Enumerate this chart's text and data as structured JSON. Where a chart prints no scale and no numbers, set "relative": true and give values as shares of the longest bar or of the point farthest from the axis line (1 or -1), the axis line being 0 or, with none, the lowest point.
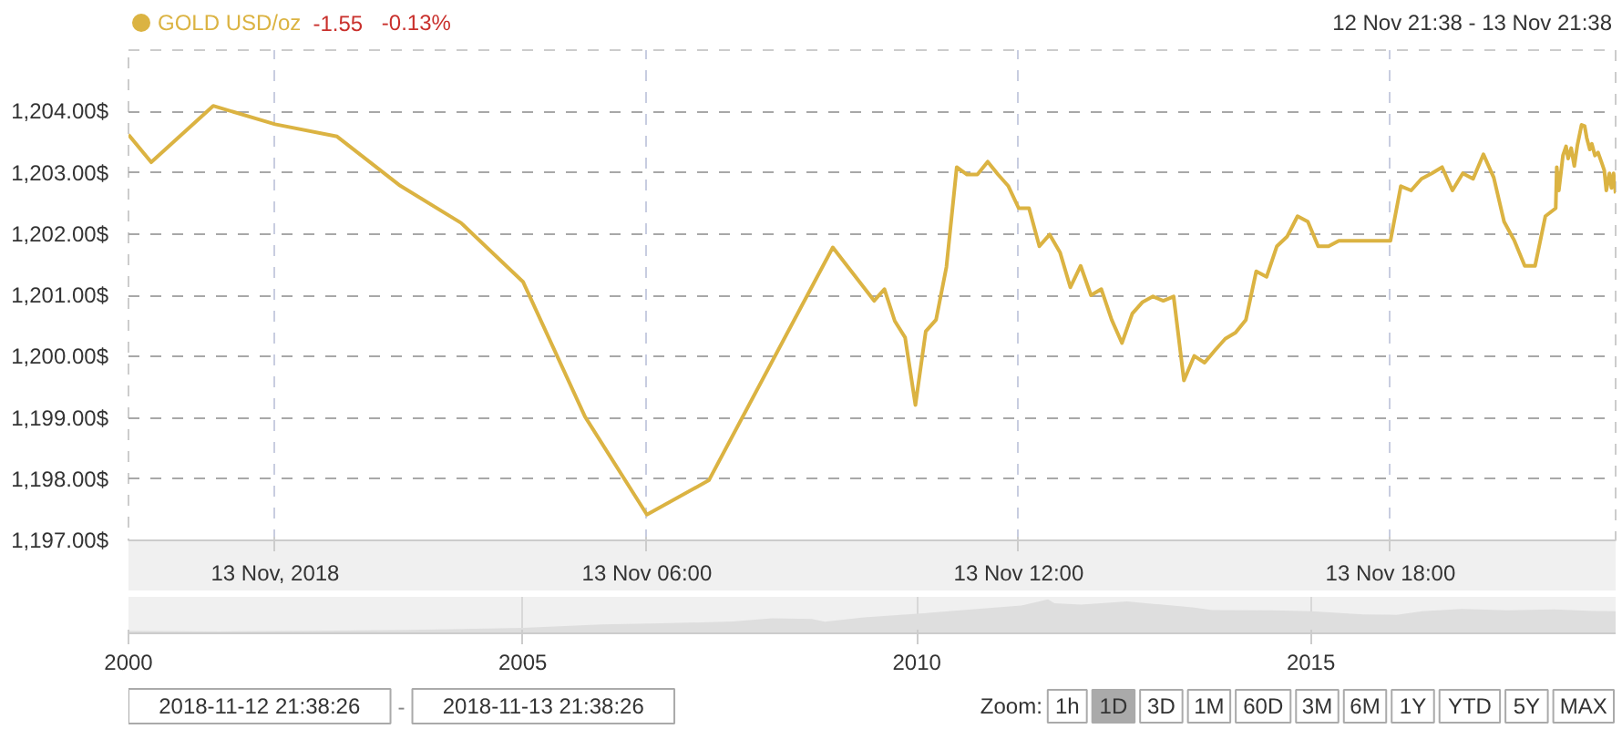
{
  "chart_data": [
    {
      "type": "line",
      "legend": "top left",
      "grid": true,
      "line_style": "solid",
      "subtitle": "12 Nov 21:38 - 13 Nov 21:38",
      "annotations": [
        "-1.55",
        "-0.13%"
      ],
      "x": [
        "2018-11-12T21:38",
        "2018-11-12T22:00",
        "2018-11-12T23:00",
        "2018-11-13T00:00",
        "2018-11-13T01:00",
        "2018-11-13T02:00",
        "2018-11-13T03:00",
        "2018-11-13T04:00",
        "2018-11-13T05:00",
        "2018-11-13T06:00",
        "2018-11-13T07:00",
        "2018-11-13T09:00",
        "2018-11-13T09:40",
        "2018-11-13T09:50",
        "2018-11-13T10:00",
        "2018-11-13T10:10",
        "2018-11-13T10:20",
        "2018-11-13T10:30",
        "2018-11-13T10:40",
        "2018-11-13T10:50",
        "2018-11-13T11:00",
        "2018-11-13T11:10",
        "2018-11-13T11:20",
        "2018-11-13T11:30",
        "2018-11-13T11:40",
        "2018-11-13T11:50",
        "2018-11-13T12:00",
        "2018-11-13T12:10",
        "2018-11-13T12:20",
        "2018-11-13T12:30",
        "2018-11-13T12:40",
        "2018-11-13T12:50",
        "2018-11-13T13:00",
        "2018-11-13T13:10",
        "2018-11-13T13:20",
        "2018-11-13T13:30",
        "2018-11-13T13:40",
        "2018-11-13T13:50",
        "2018-11-13T14:00",
        "2018-11-13T14:10",
        "2018-11-13T14:20",
        "2018-11-13T14:30",
        "2018-11-13T14:40",
        "2018-11-13T14:50",
        "2018-11-13T15:00",
        "2018-11-13T15:10",
        "2018-11-13T15:20",
        "2018-11-13T15:30",
        "2018-11-13T15:40",
        "2018-11-13T15:50",
        "2018-11-13T16:00",
        "2018-11-13T16:10",
        "2018-11-13T16:20",
        "2018-11-13T16:30",
        "2018-11-13T16:40",
        "2018-11-13T16:50",
        "2018-11-13T17:00",
        "2018-11-13T17:10",
        "2018-11-13T18:00",
        "2018-11-13T18:10",
        "2018-11-13T18:20",
        "2018-11-13T18:30",
        "2018-11-13T18:40",
        "2018-11-13T18:50",
        "2018-11-13T19:00",
        "2018-11-13T19:10",
        "2018-11-13T19:20",
        "2018-11-13T19:30",
        "2018-11-13T19:40",
        "2018-11-13T19:50",
        "2018-11-13T20:00",
        "2018-11-13T20:10",
        "2018-11-13T20:20",
        "2018-11-13T20:30",
        "2018-11-13T20:40",
        "2018-11-13T20:41",
        "2018-11-13T20:43",
        "2018-11-13T20:47",
        "2018-11-13T20:50",
        "2018-11-13T20:52",
        "2018-11-13T20:55",
        "2018-11-13T20:58",
        "2018-11-13T21:01",
        "2018-11-13T21:05",
        "2018-11-13T21:08",
        "2018-11-13T21:10",
        "2018-11-13T21:13",
        "2018-11-13T21:15",
        "2018-11-13T21:18",
        "2018-11-13T21:21",
        "2018-11-13T21:25",
        "2018-11-13T21:27",
        "2018-11-13T21:29",
        "2018-11-13T21:32",
        "2018-11-13T21:34",
        "2018-11-13T21:36",
        "2018-11-13T21:38"
      ],
      "series": [
        {
          "name": "GOLD USD/oz",
          "color": "#dbb342",
          "values": [
            1203.62,
            1203.17,
            1204.09,
            1203.79,
            1203.59,
            1202.8,
            1202.18,
            1201.22,
            1199.02,
            1197.42,
            1197.98,
            1201.78,
            1200.91,
            1201.1,
            1200.58,
            1200.31,
            1199.21,
            1200.41,
            1200.6,
            1201.46,
            1203.09,
            1202.97,
            1202.97,
            1203.18,
            1202.97,
            1202.78,
            1202.42,
            1202.42,
            1201.8,
            1201.99,
            1201.7,
            1201.13,
            1201.48,
            1201.0,
            1201.1,
            1200.6,
            1200.22,
            1200.7,
            1200.89,
            1200.98,
            1200.91,
            1200.98,
            1199.61,
            1200.01,
            1199.9,
            1200.1,
            1200.29,
            1200.39,
            1200.6,
            1201.39,
            1201.3,
            1201.8,
            1201.96,
            1202.29,
            1202.2,
            1201.8,
            1201.8,
            1201.89,
            1201.89,
            1202.78,
            1202.71,
            1202.9,
            1202.99,
            1203.09,
            1202.71,
            1202.99,
            1202.9,
            1203.3,
            1202.92,
            1202.2,
            1201.89,
            1201.48,
            1201.48,
            1202.29,
            1202.42,
            1203.09,
            1202.71,
            1203.28,
            1203.43,
            1203.23,
            1203.4,
            1203.11,
            1203.45,
            1203.78,
            1203.76,
            1203.57,
            1203.38,
            1203.47,
            1203.28,
            1203.33,
            1203.14,
            1203.04,
            1202.71,
            1202.99,
            1202.75,
            1202.99,
            1202.66
          ]
        }
      ],
      "xlim": [
        "2018-11-12T21:38",
        "2018-11-13T21:38"
      ],
      "xticks": [
        {
          "value": "2018-11-13T00:00",
          "label": "13 Nov, 2018"
        },
        {
          "value": "2018-11-13T06:00",
          "label": "13 Nov 06:00"
        },
        {
          "value": "2018-11-13T12:00",
          "label": "13 Nov 12:00"
        },
        {
          "value": "2018-11-13T18:00",
          "label": "13 Nov 18:00"
        }
      ],
      "ylim": [
        1197,
        1205
      ],
      "yticks": [
        {
          "value": 1197,
          "label": "1,197.00$"
        },
        {
          "value": 1198,
          "label": "1,198.00$"
        },
        {
          "value": 1199,
          "label": "1,199.00$"
        },
        {
          "value": 1200,
          "label": "1,200.00$"
        },
        {
          "value": 1201,
          "label": "1,201.00$"
        },
        {
          "value": 1202,
          "label": "1,202.00$"
        },
        {
          "value": 1203,
          "label": "1,203.00$"
        },
        {
          "value": 1204,
          "label": "1,204.00$"
        }
      ]
    },
    {
      "type": "area",
      "relative": true,
      "grid": "x",
      "color": "#dedede",
      "x": [
        "2000-01",
        "2001-03",
        "2002-05",
        "2003-08",
        "2005-01",
        "2006-01",
        "2006-10",
        "2007-09",
        "2008-03",
        "2008-09",
        "2008-11",
        "2009-05",
        "2010-01",
        "2010-12",
        "2011-05",
        "2011-09",
        "2011-10",
        "2012-02",
        "2012-09",
        "2013-01",
        "2013-07",
        "2013-10",
        "2014-07",
        "2015-01",
        "2015-09",
        "2016-02",
        "2016-06",
        "2016-12",
        "2017-07",
        "2018-02",
        "2018-08",
        "2018-11-13"
      ],
      "values": [
        0.02,
        0,
        0.02,
        0.05,
        0.11,
        0.22,
        0.25,
        0.31,
        0.41,
        0.39,
        0.3,
        0.44,
        0.55,
        0.73,
        0.81,
        1,
        0.88,
        0.84,
        0.94,
        0.86,
        0.75,
        0.67,
        0.66,
        0.63,
        0.53,
        0.52,
        0.63,
        0.7,
        0.66,
        0.69,
        0.64,
        0.63
      ],
      "xlim": [
        "2000-01-01",
        "2018-11-13"
      ],
      "xticks": [
        {
          "value": "2000",
          "label": "2000"
        },
        {
          "value": "2005",
          "label": "2005"
        },
        {
          "value": "2010",
          "label": "2010"
        },
        {
          "value": "2015",
          "label": "2015"
        }
      ]
    },
    {
      "type": "other",
      "annotations": [
        "2018-11-12 21:38:26",
        "-",
        "2018-11-13 21:38:26",
        "Zoom:",
        "1h",
        "1D",
        "3D",
        "1M",
        "60D",
        "3M",
        "6M",
        "1Y",
        "YTD",
        "5Y",
        "MAX"
      ]
    }
  ]
}
